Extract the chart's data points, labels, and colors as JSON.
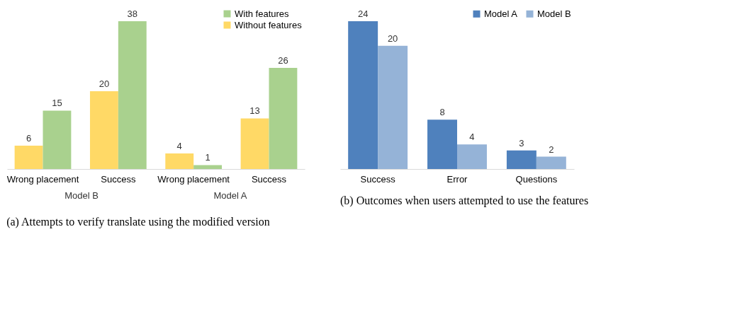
{
  "chart_data": [
    {
      "type": "bar",
      "title": "(a) Attempts to verify translate using the modified version",
      "categories": [
        "Wrong placement",
        "Success",
        "Wrong placement",
        "Success"
      ],
      "series": [
        {
          "name": "Without features",
          "color": "#ffd966",
          "values": [
            6,
            20,
            4,
            13
          ]
        },
        {
          "name": "With features",
          "color": "#a9d18e",
          "values": [
            15,
            38,
            1,
            26
          ]
        }
      ],
      "annotations": [
        "Model B",
        "Model A"
      ],
      "data_labels": true,
      "legend": "top right",
      "grid": false
    },
    {
      "type": "bar",
      "title": "(b) Outcomes when users attempted to use the features",
      "categories": [
        "Success",
        "Error",
        "Questions"
      ],
      "series": [
        {
          "name": "Model A",
          "color": "#4f81bd",
          "values": [
            24,
            8,
            3
          ]
        },
        {
          "name": "Model B",
          "color": "#95b3d7",
          "values": [
            20,
            4,
            2
          ]
        }
      ],
      "data_labels": true,
      "legend": "top right",
      "grid": false
    }
  ]
}
